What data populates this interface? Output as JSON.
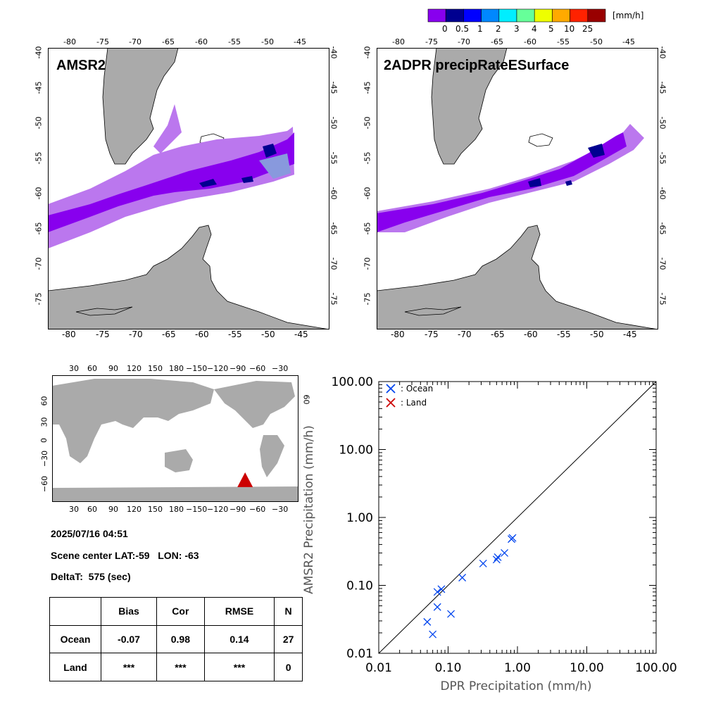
{
  "colorbar": {
    "unit": "[mm/h]",
    "colors": [
      "#8800ee",
      "#000090",
      "#0000ff",
      "#0088ff",
      "#00eeff",
      "#66ff99",
      "#eeff00",
      "#ffaa00",
      "#ff2200",
      "#990000"
    ],
    "labels": [
      "0",
      "0.5",
      "1",
      "2",
      "3",
      "4",
      "5",
      "10",
      "25"
    ]
  },
  "map_panels": [
    {
      "title": "AMSR2",
      "lon_ticks": [
        "-80",
        "-75",
        "-70",
        "-65",
        "-60",
        "-55",
        "-50",
        "-45"
      ],
      "lat_ticks": [
        "-40",
        "-45",
        "-50",
        "-55",
        "-60",
        "-65",
        "-70",
        "-75"
      ]
    },
    {
      "title": "2ADPR precipRateESurface",
      "lon_ticks": [
        "-80",
        "-75",
        "-70",
        "-65",
        "-60",
        "-55",
        "-50",
        "-45"
      ],
      "lat_ticks": [
        "-40",
        "-45",
        "-50",
        "-55",
        "-60",
        "-65",
        "-70",
        "-75"
      ]
    }
  ],
  "world_map": {
    "lon_ticks": [
      "30",
      "60",
      "90",
      "120",
      "150",
      "180",
      "−150",
      "−120",
      "−90",
      "−60",
      "−30"
    ],
    "lat_ticks": [
      "60",
      "30",
      "0",
      "−30",
      "−60"
    ],
    "right_lat_label": "60",
    "marker_color": "#cc0000",
    "marker_lon": -63,
    "marker_lat": -59
  },
  "info": {
    "datetime": "2025/07/16 04:51",
    "scene_center": "Scene center LAT:-59   LON: -63",
    "deltat": "DeltaT:  575 (sec)"
  },
  "stats_table": {
    "headers": [
      "Bias",
      "Cor",
      "RMSE",
      "N"
    ],
    "rows": [
      {
        "label": "Ocean",
        "values": [
          "-0.07",
          "0.98",
          "0.14",
          "27"
        ]
      },
      {
        "label": "Land",
        "values": [
          "***",
          "***",
          "***",
          "0"
        ]
      }
    ]
  },
  "chart_data": {
    "type": "scatter",
    "xlabel": "DPR Precipitation (mm/h)",
    "ylabel": "AMSR2 Precipitation (mm/h)",
    "x_scale": "log",
    "y_scale": "log",
    "xlim": [
      0.01,
      100
    ],
    "ylim": [
      0.01,
      100
    ],
    "tick_labels": [
      "0.01",
      "0.10",
      "1.00",
      "10.00",
      "100.00"
    ],
    "tick_values": [
      0.01,
      0.1,
      1,
      10,
      100
    ],
    "reference_line": "1:1",
    "legend": [
      {
        "label": ": Ocean",
        "color": "#0044ee"
      },
      {
        "label": ": Land",
        "color": "#cc0000"
      }
    ],
    "series": [
      {
        "name": "Ocean",
        "color": "#0044ee",
        "points": [
          [
            0.05,
            0.029
          ],
          [
            0.06,
            0.019
          ],
          [
            0.07,
            0.048
          ],
          [
            0.07,
            0.08
          ],
          [
            0.08,
            0.088
          ],
          [
            0.11,
            0.038
          ],
          [
            0.16,
            0.13
          ],
          [
            0.32,
            0.21
          ],
          [
            0.5,
            0.24
          ],
          [
            0.52,
            0.26
          ],
          [
            0.65,
            0.3
          ],
          [
            0.82,
            0.48
          ],
          [
            0.85,
            0.5
          ]
        ]
      },
      {
        "name": "Land",
        "color": "#cc0000",
        "points": []
      }
    ]
  }
}
